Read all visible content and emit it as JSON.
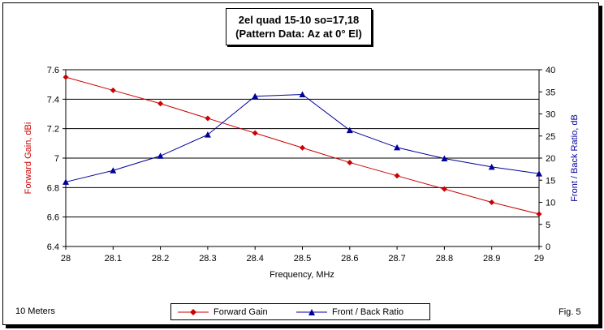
{
  "chart_data": {
    "type": "line",
    "title": "2el quad 15-10 so=17,18",
    "subtitle": "(Pattern Data: Az at 0° El)",
    "xlabel": "Frequency, MHz",
    "ylabel_left": "Forward Gain,  dBi",
    "ylabel_right": "Front / Back Ratio,  dB",
    "x": [
      28,
      28.1,
      28.2,
      28.3,
      28.4,
      28.5,
      28.6,
      28.7,
      28.8,
      28.9,
      29
    ],
    "x_tick_labels": [
      "28",
      "28.1",
      "28.2",
      "28.3",
      "28.4",
      "28.5",
      "28.6",
      "28.7",
      "28.8",
      "28.9",
      "29"
    ],
    "xlim": [
      28,
      29
    ],
    "ylim_left": [
      6.4,
      7.6
    ],
    "y_left_ticks": [
      "6.4",
      "6.6",
      "6.8",
      "7",
      "7.2",
      "7.4",
      "7.6"
    ],
    "ylim_right": [
      0,
      40
    ],
    "y_right_ticks": [
      "0",
      "5",
      "10",
      "15",
      "20",
      "25",
      "30",
      "35",
      "40"
    ],
    "grid": "horizontal",
    "legend_position": "bottom",
    "series": [
      {
        "name": "Forward Gain",
        "axis": "left",
        "color": "#cc0000",
        "marker": "diamond",
        "values": [
          7.55,
          7.46,
          7.37,
          7.27,
          7.17,
          7.07,
          6.97,
          6.88,
          6.79,
          6.7,
          6.62
        ]
      },
      {
        "name": "Front / Back Ratio",
        "axis": "right",
        "color": "#000099",
        "marker": "triangle",
        "values": [
          14.6,
          17.2,
          20.5,
          25.3,
          34.0,
          34.4,
          26.3,
          22.4,
          19.9,
          18.0,
          16.5
        ]
      }
    ]
  },
  "footer": {
    "left_note": "10 Meters",
    "right_note": "Fig. 5"
  }
}
